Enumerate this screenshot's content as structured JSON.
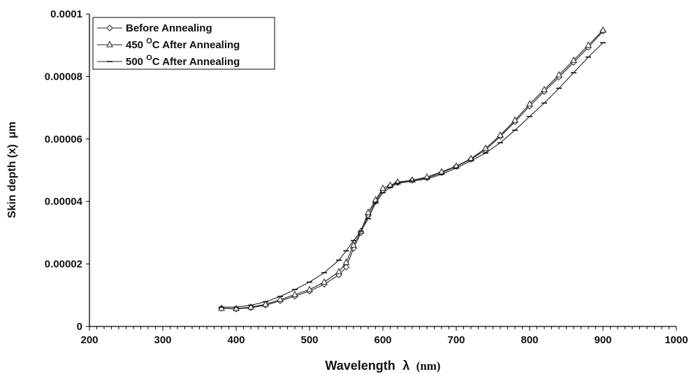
{
  "chart_data": {
    "type": "line",
    "title": "",
    "xlabel": "Wavelength",
    "xlabel_symbol": "λ",
    "xlabel_unit": "(nm)",
    "ylabel": "Skin depth (x)",
    "ylabel_unit": "μm",
    "xlim": [
      200,
      1000
    ],
    "ylim": [
      0,
      0.0001
    ],
    "x_ticks": [
      200,
      300,
      400,
      500,
      600,
      700,
      800,
      900,
      1000
    ],
    "x_tick_labels": [
      "200",
      "300",
      "400",
      "500",
      "600",
      "700",
      "800",
      "900",
      "1000"
    ],
    "y_ticks": [
      0,
      2e-05,
      4e-05,
      6e-05,
      8e-05,
      0.0001
    ],
    "y_tick_labels": [
      "0",
      "0.00002",
      "0.00004",
      "0.00006",
      "0.00008",
      "0.0001"
    ],
    "grid": false,
    "legend_position": "top-left",
    "x": [
      380,
      400,
      420,
      440,
      460,
      480,
      500,
      520,
      540,
      550,
      560,
      570,
      580,
      590,
      600,
      610,
      620,
      640,
      660,
      680,
      700,
      720,
      740,
      760,
      780,
      800,
      820,
      840,
      860,
      880,
      900
    ],
    "series": [
      {
        "name": "Before Annealing",
        "marker": "diamond",
        "values": [
          5.8e-06,
          5.6e-06,
          6e-06,
          6.8e-06,
          8.2e-06,
          9.7e-06,
          1.13e-05,
          1.35e-05,
          1.65e-05,
          1.9e-05,
          2.5e-05,
          3e-05,
          3.55e-05,
          4e-05,
          4.35e-05,
          4.5e-05,
          4.6e-05,
          4.68e-05,
          4.75e-05,
          4.92e-05,
          5.12e-05,
          5.35e-05,
          5.65e-05,
          6.08e-05,
          6.55e-05,
          7.05e-05,
          7.52e-05,
          7.98e-05,
          8.45e-05,
          8.93e-05,
          9.45e-05
        ]
      },
      {
        "name": "450 °C After Annealing",
        "name_prefix": "450 ",
        "name_sup": "O",
        "name_suffix": "C After Annealing",
        "marker": "triangle",
        "values": [
          5.8e-06,
          5.7e-06,
          6.2e-06,
          7.1e-06,
          8.6e-06,
          1.02e-05,
          1.18e-05,
          1.42e-05,
          1.75e-05,
          2.05e-05,
          2.6e-05,
          3.05e-05,
          3.65e-05,
          4.05e-05,
          4.42e-05,
          4.52e-05,
          4.62e-05,
          4.68e-05,
          4.78e-05,
          4.95e-05,
          5.13e-05,
          5.37e-05,
          5.7e-05,
          6.12e-05,
          6.6e-05,
          7.12e-05,
          7.58e-05,
          8.05e-05,
          8.52e-05,
          9e-05,
          9.48e-05
        ]
      },
      {
        "name": "500 °C After Annealing",
        "name_prefix": "500 ",
        "name_sup": "O",
        "name_suffix": "C After Annealing",
        "marker": "dash",
        "values": [
          6.2e-06,
          6.2e-06,
          6.8e-06,
          7.9e-06,
          9.6e-06,
          1.18e-05,
          1.42e-05,
          1.72e-05,
          2.12e-05,
          2.42e-05,
          2.75e-05,
          3.05e-05,
          3.45e-05,
          3.95e-05,
          4.28e-05,
          4.45e-05,
          4.58e-05,
          4.65e-05,
          4.72e-05,
          4.87e-05,
          5.07e-05,
          5.3e-05,
          5.55e-05,
          5.88e-05,
          6.28e-05,
          6.72e-05,
          7.15e-05,
          7.62e-05,
          8.12e-05,
          8.62e-05,
          9.08e-05
        ]
      }
    ]
  }
}
